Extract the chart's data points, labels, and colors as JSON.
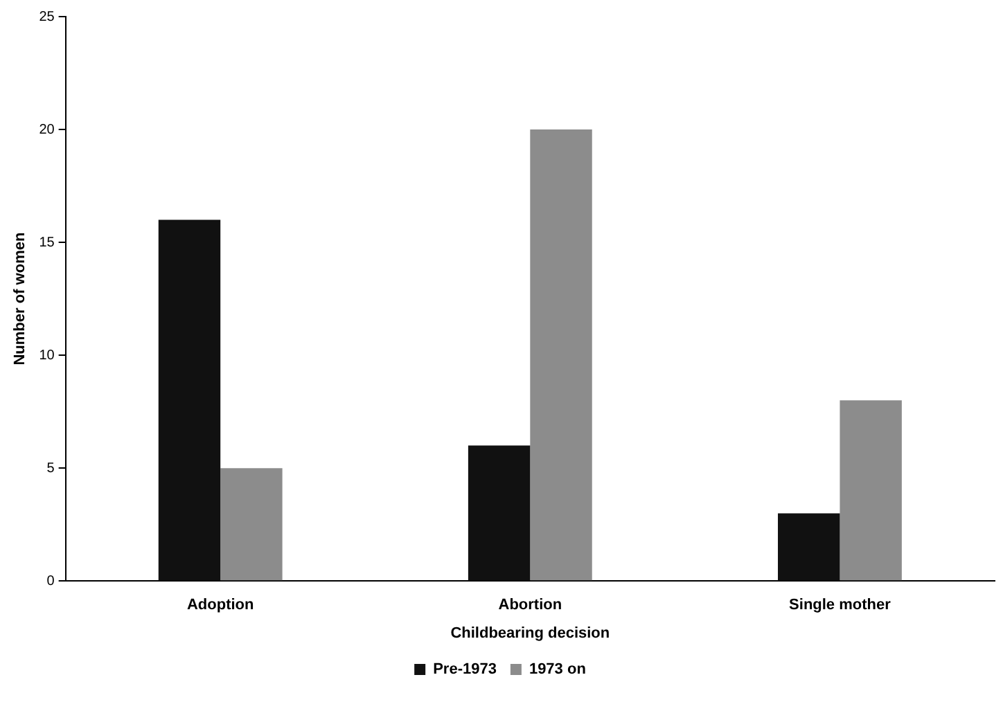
{
  "chart_data": {
    "type": "bar",
    "xlabel": "Childbearing decision",
    "ylabel": "Number of women",
    "categories": [
      "Adoption",
      "Abortion",
      "Single mother"
    ],
    "series": [
      {
        "name": "Pre-1973",
        "color": "#111111",
        "values": [
          16,
          6,
          3
        ]
      },
      {
        "name": "1973 on",
        "color": "#8c8c8c",
        "values": [
          5,
          20,
          8
        ]
      }
    ],
    "ylim": [
      0,
      25
    ],
    "yticks": [
      0,
      5,
      10,
      15,
      20,
      25
    ],
    "grid": false,
    "legend": "bottom"
  }
}
